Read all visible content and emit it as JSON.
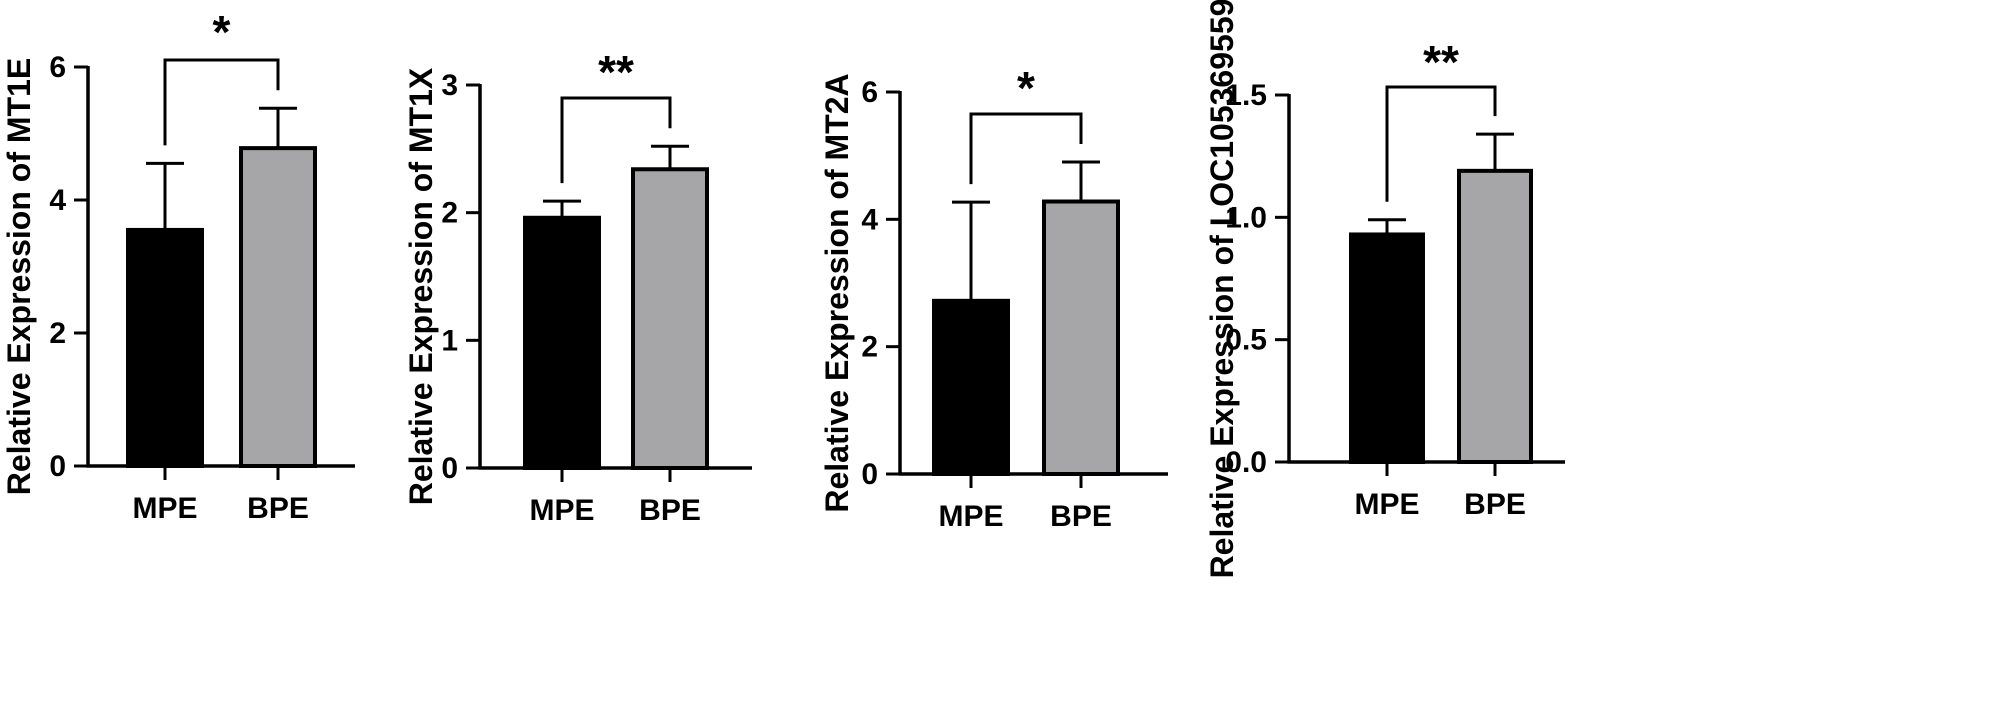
{
  "colors": {
    "MPE": "#000000",
    "BPE": "#a6a6a8",
    "axis": "#000000"
  },
  "chart_data": [
    {
      "type": "bar",
      "categories": [
        "MPE",
        "BPE"
      ],
      "values": [
        3.55,
        4.78
      ],
      "errors": [
        1.0,
        0.6
      ],
      "ylabel": "Relative Expression of MT1E",
      "ylim": [
        0,
        6
      ],
      "yticks": [
        0,
        2,
        4,
        6
      ],
      "yticks_labels": [
        "0",
        "2",
        "4",
        "6"
      ],
      "significance": "*",
      "grid": false
    },
    {
      "type": "bar",
      "categories": [
        "MPE",
        "BPE"
      ],
      "values": [
        1.96,
        2.34
      ],
      "errors": [
        0.13,
        0.18
      ],
      "ylabel": "Relative Expression of MT1X",
      "ylim": [
        0,
        3
      ],
      "yticks": [
        0,
        1,
        2,
        3
      ],
      "yticks_labels": [
        "0",
        "1",
        "2",
        "3"
      ],
      "significance": "**",
      "grid": false
    },
    {
      "type": "bar",
      "categories": [
        "MPE",
        "BPE"
      ],
      "values": [
        2.72,
        4.28
      ],
      "errors": [
        1.55,
        0.62
      ],
      "ylabel": "Relative Expression of MT2A",
      "ylim": [
        0,
        6
      ],
      "yticks": [
        0,
        2,
        4,
        6
      ],
      "yticks_labels": [
        "0",
        "2",
        "4",
        "6"
      ],
      "significance": "*",
      "grid": false
    },
    {
      "type": "bar",
      "categories": [
        "MPE",
        "BPE"
      ],
      "values": [
        0.93,
        1.19
      ],
      "errors": [
        0.06,
        0.15
      ],
      "ylabel": "Relative Expression of LOC105369559",
      "ylim": [
        0,
        1.5
      ],
      "yticks": [
        0,
        0.5,
        1.0,
        1.5
      ],
      "yticks_labels": [
        "0.0",
        "0.5",
        "1.0",
        "1.5"
      ],
      "significance": "**",
      "grid": false
    }
  ]
}
